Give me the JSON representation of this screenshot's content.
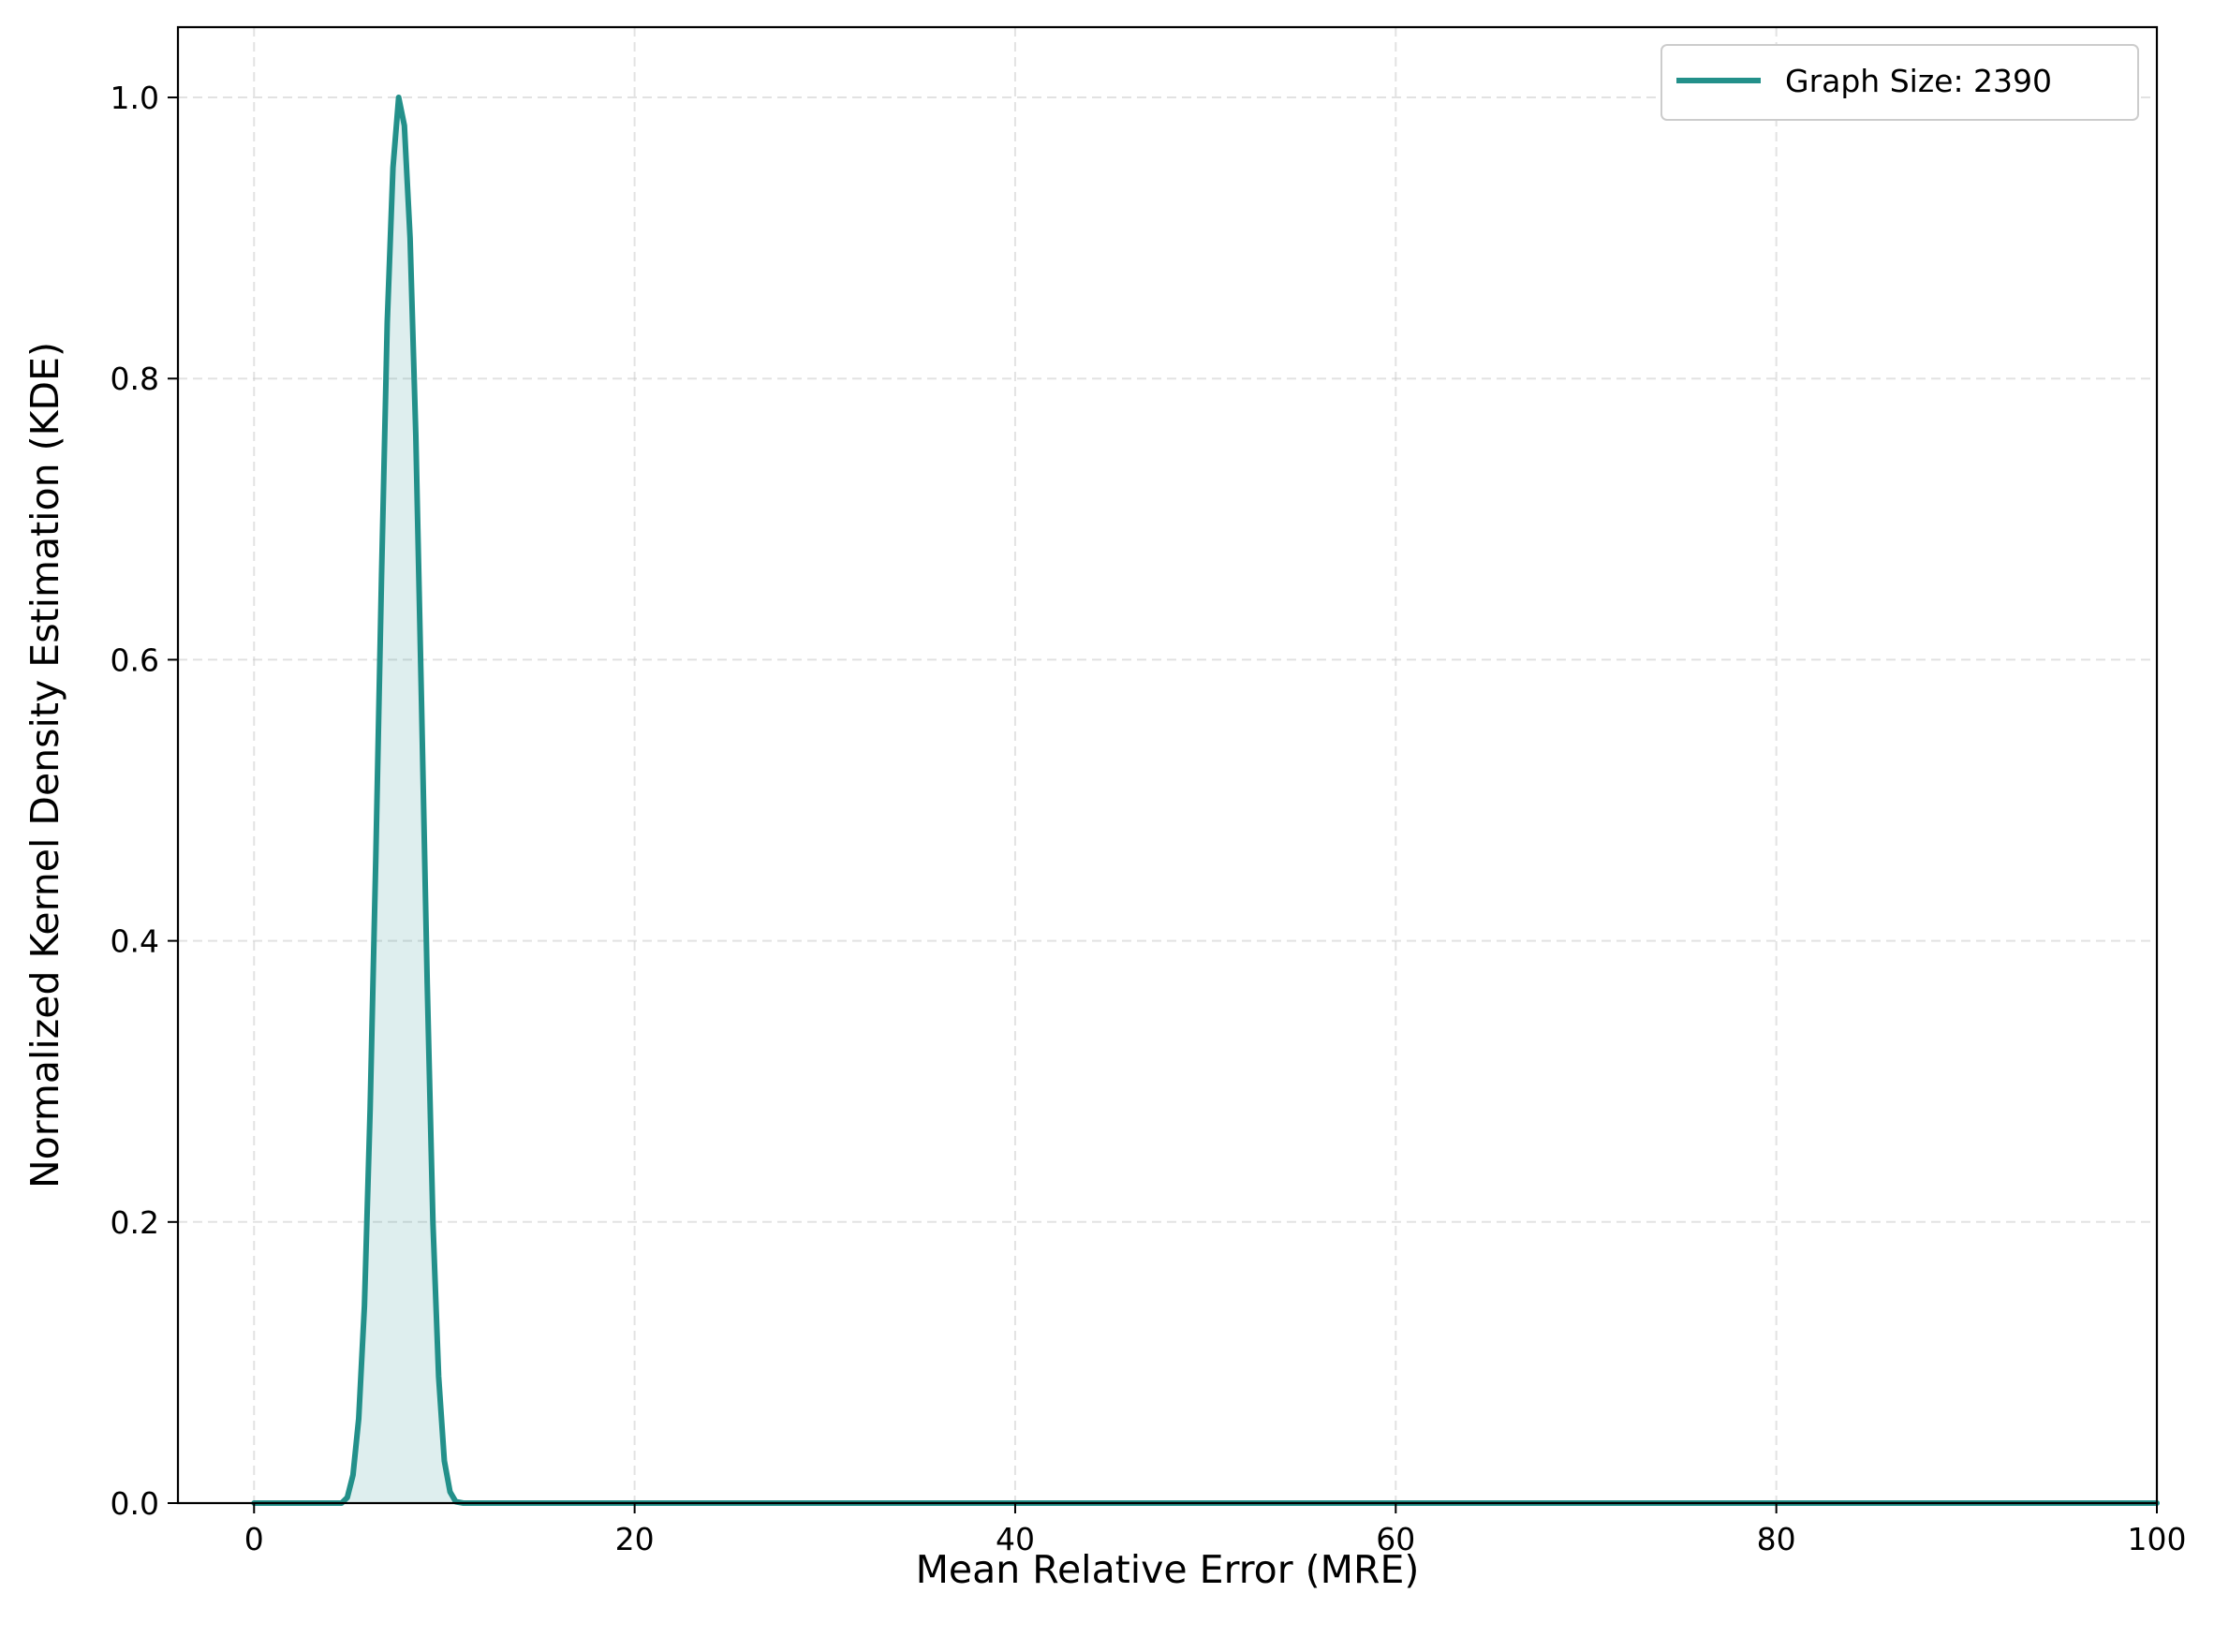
{
  "chart_data": {
    "type": "area",
    "title": "",
    "xlabel": "Mean Relative Error (MRE)",
    "ylabel": "Normalized Kernel Density Estimation (KDE)",
    "xlim": [
      -4,
      100
    ],
    "ylim": [
      0,
      1.05
    ],
    "x_ticks": [
      0,
      20,
      40,
      60,
      80,
      100
    ],
    "x_tick_labels": [
      "0",
      "20",
      "40",
      "60",
      "80",
      "100"
    ],
    "y_ticks": [
      0,
      0.2,
      0.4,
      0.6,
      0.8,
      1.0
    ],
    "y_tick_labels": [
      "0.0",
      "0.2",
      "0.4",
      "0.6",
      "0.8",
      "1.0"
    ],
    "grid": true,
    "legend_position": "top-right",
    "series": [
      {
        "name": "Graph Size: 2390",
        "color": "#23908a",
        "fill_color": "#23908a",
        "fill_opacity": 0.15,
        "x": [
          0,
          4.6,
          4.9,
          5.2,
          5.5,
          5.8,
          6.1,
          6.4,
          6.7,
          7.0,
          7.3,
          7.6,
          7.9,
          8.2,
          8.5,
          8.8,
          9.1,
          9.4,
          9.7,
          10.0,
          10.3,
          10.6,
          11.0,
          20,
          40,
          60,
          80,
          100
        ],
        "y": [
          0.0,
          0.0,
          0.004,
          0.02,
          0.06,
          0.14,
          0.28,
          0.46,
          0.66,
          0.84,
          0.95,
          1.0,
          0.98,
          0.9,
          0.76,
          0.57,
          0.37,
          0.2,
          0.09,
          0.03,
          0.008,
          0.001,
          0.0,
          0.0,
          0.0,
          0.0,
          0.0,
          0.0
        ]
      }
    ]
  }
}
